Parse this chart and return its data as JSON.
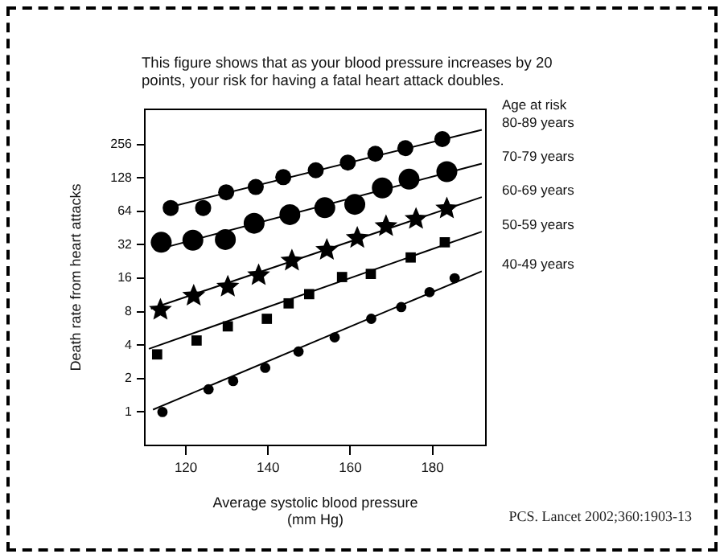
{
  "chart_data": {
    "type": "scatter",
    "title": "This figure shows that as your blood pressure increases by 20 points, your risk for having a fatal heart attack doubles.",
    "xlabel": "Average systolic blood pressure\n(mm Hg)",
    "ylabel": "Death rate from heart attacks",
    "legend_title": "Age at risk",
    "annotations": [
      "PCS. Lancet 2002;360:1903-13"
    ],
    "log": "y",
    "grid": false,
    "legend": false,
    "xlim": [
      110,
      193
    ],
    "ylim": [
      0.5,
      530
    ],
    "xticks": [
      120,
      140,
      160,
      180
    ],
    "yticks": [
      1,
      2,
      4,
      8,
      16,
      32,
      64,
      128,
      256
    ],
    "series": [
      {
        "type": "line",
        "color": "#000000",
        "marker": "none",
        "x": [
          112,
          192
        ],
        "values": [
          1.05,
          18.5
        ]
      },
      {
        "type": "line",
        "color": "#000000",
        "marker": "none",
        "x": [
          111,
          192
        ],
        "values": [
          3.7,
          42
        ]
      },
      {
        "type": "line",
        "color": "#000000",
        "marker": "none",
        "x": [
          111.5,
          192
        ],
        "values": [
          8.5,
          86
        ]
      },
      {
        "type": "line",
        "color": "#000000",
        "marker": "none",
        "x": [
          113,
          192
        ],
        "values": [
          29,
          172
        ]
      },
      {
        "type": "line",
        "color": "#000000",
        "marker": "none",
        "x": [
          114.7,
          192
        ],
        "values": [
          68,
          347
        ]
      },
      {
        "name": "40-49 years",
        "color": "#000000",
        "marker": "circle",
        "x": [
          114.3,
          125.5,
          131.5,
          139.3,
          147.4,
          156.2,
          165.1,
          172.4,
          179.3,
          185.4
        ],
        "values": [
          1,
          1.6,
          1.9,
          2.5,
          3.5,
          4.7,
          6.9,
          8.8,
          12,
          16
        ]
      },
      {
        "name": "50-59 years",
        "color": "#000000",
        "marker": "square",
        "x": [
          113,
          122.6,
          130.2,
          139.7,
          145,
          150,
          158,
          165,
          174.7,
          183
        ],
        "values": [
          3.3,
          4.4,
          5.9,
          6.9,
          9.5,
          11.5,
          16.4,
          17.5,
          24.6,
          33.7
        ]
      },
      {
        "name": "60-69 years",
        "color": "#000000",
        "marker": "star",
        "x": [
          113.8,
          121.9,
          130.2,
          137.7,
          145.8,
          154.3,
          161.7,
          168.7,
          176,
          183.5
        ],
        "values": [
          8.3,
          11.1,
          13.4,
          17,
          23,
          28.7,
          36.8,
          47,
          54.6,
          67.7
        ]
      },
      {
        "name": "70-79 years",
        "color": "#000000",
        "marker": "circle",
        "x": [
          114,
          121.7,
          129.6,
          136.6,
          145.3,
          153.8,
          161.1,
          167.8,
          174.3,
          183.5
        ],
        "values": [
          33.7,
          35.2,
          35.7,
          50,
          59.8,
          69,
          74,
          104,
          124.7,
          145.6
        ]
      },
      {
        "name": "80-89 years",
        "color": "#000000",
        "marker": "circle",
        "x": [
          116.3,
          124.2,
          129.8,
          137,
          143.7,
          151.6,
          159.4,
          166.1,
          173.4,
          182.4
        ],
        "values": [
          68.6,
          68.6,
          95,
          106,
          130,
          150,
          176,
          211,
          237,
          286
        ]
      }
    ]
  }
}
